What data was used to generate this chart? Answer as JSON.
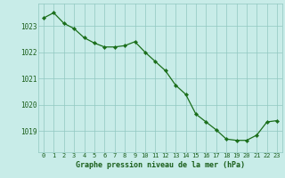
{
  "x": [
    0,
    1,
    2,
    3,
    4,
    5,
    6,
    7,
    8,
    9,
    10,
    11,
    12,
    13,
    14,
    15,
    16,
    17,
    18,
    19,
    20,
    21,
    22,
    23
  ],
  "y": [
    1023.3,
    1023.5,
    1023.1,
    1022.9,
    1022.55,
    1022.35,
    1022.2,
    1022.2,
    1022.25,
    1022.4,
    1022.0,
    1021.65,
    1021.3,
    1020.75,
    1020.4,
    1019.65,
    1019.35,
    1019.05,
    1018.7,
    1018.65,
    1018.65,
    1018.85,
    1019.35,
    1019.4
  ],
  "line_color": "#1a6e1a",
  "marker_color": "#1a6e1a",
  "bg_color": "#c8ece8",
  "grid_color": "#90c8c0",
  "axis_label_color": "#1a5e1a",
  "xlabel": "Graphe pression niveau de la mer (hPa)",
  "ytick_labels": [
    "1019",
    "1020",
    "1021",
    "1022",
    "1023"
  ],
  "ytick_values": [
    1019,
    1020,
    1021,
    1022,
    1023
  ],
  "ylim": [
    1018.2,
    1023.85
  ],
  "xlim": [
    -0.5,
    23.5
  ],
  "xtick_values": [
    0,
    1,
    2,
    3,
    4,
    5,
    6,
    7,
    8,
    9,
    10,
    11,
    12,
    13,
    14,
    15,
    16,
    17,
    18,
    19,
    20,
    21,
    22,
    23
  ]
}
